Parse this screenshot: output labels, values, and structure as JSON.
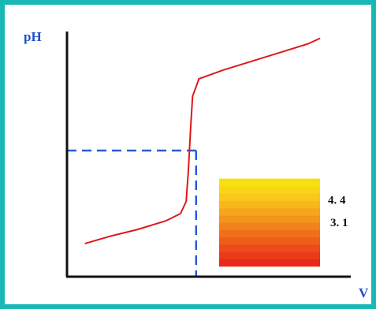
{
  "chart_data": {
    "type": "line",
    "title": "",
    "xlabel": "V",
    "ylabel": "pH",
    "ylim": [
      0,
      14
    ],
    "xlim": [
      0,
      20
    ],
    "grid": false,
    "legend": "none",
    "series": [
      {
        "points": [
          [
            1.3,
            1.9
          ],
          [
            3.0,
            2.3
          ],
          [
            5.0,
            2.7
          ],
          [
            7.0,
            3.2
          ],
          [
            8.0,
            3.6
          ],
          [
            8.4,
            4.3
          ],
          [
            8.55,
            6.0
          ],
          [
            8.7,
            8.3
          ],
          [
            8.85,
            10.3
          ],
          [
            9.3,
            11.3
          ],
          [
            11.0,
            11.8
          ],
          [
            13.0,
            12.3
          ],
          [
            15.0,
            12.8
          ],
          [
            17.0,
            13.3
          ],
          [
            17.8,
            13.6
          ]
        ],
        "color": "#e01818"
      }
    ],
    "reference_line": {
      "x": 9.1,
      "y": 7.2,
      "color": "#2a5ad8"
    },
    "indicator_scale": {
      "labels": [
        "4. 4",
        "3. 1"
      ],
      "label_levels": [
        4.4,
        3.1
      ],
      "range": [
        0.6,
        5.6
      ],
      "colors": [
        "#e82818",
        "#ea3a18",
        "#ec4c18",
        "#ee5e1a",
        "#f0701a",
        "#f2821c",
        "#f4941c",
        "#f6a61c",
        "#f8b81c",
        "#f8c81a",
        "#f8d616",
        "#f6e010"
      ]
    }
  },
  "colors": {
    "frame": "#19b8b4",
    "axes": "#111111",
    "background": "#ffffff"
  }
}
